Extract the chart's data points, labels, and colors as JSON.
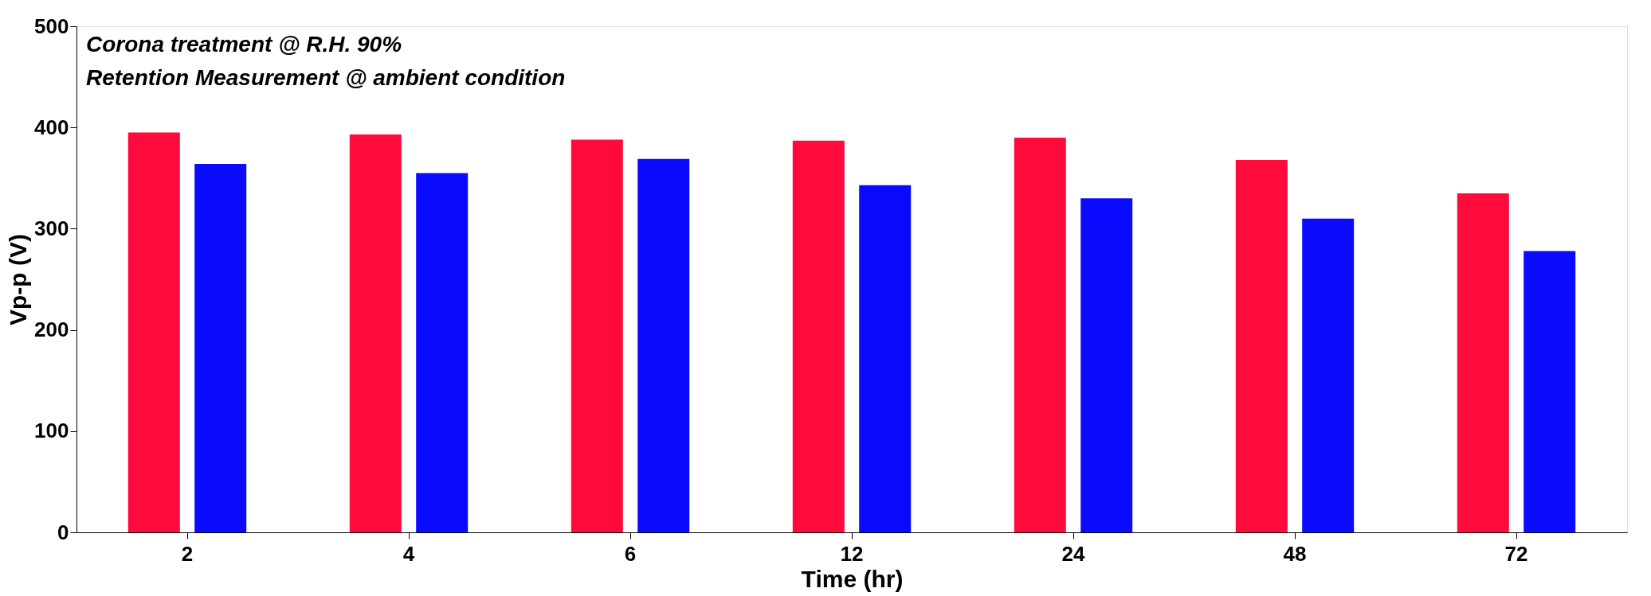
{
  "chart_data": {
    "type": "bar",
    "xlabel": "Time (hr)",
    "ylabel": "Vp-p (V)",
    "annotations": [
      "Corona treatment @ R.H. 90%",
      "Retention Measurement @ ambient condition"
    ],
    "categories": [
      "2",
      "4",
      "6",
      "12",
      "24",
      "48",
      "72"
    ],
    "series": [
      {
        "color": "#ff0a3c",
        "values": [
          395,
          393,
          388,
          387,
          390,
          368,
          335
        ]
      },
      {
        "color": "#0a0aff",
        "values": [
          364,
          355,
          369,
          343,
          330,
          310,
          278
        ]
      }
    ],
    "ylim": [
      0,
      500
    ],
    "yticks": [
      0,
      100,
      200,
      300,
      400,
      500
    ],
    "grid": false,
    "legend": false
  }
}
